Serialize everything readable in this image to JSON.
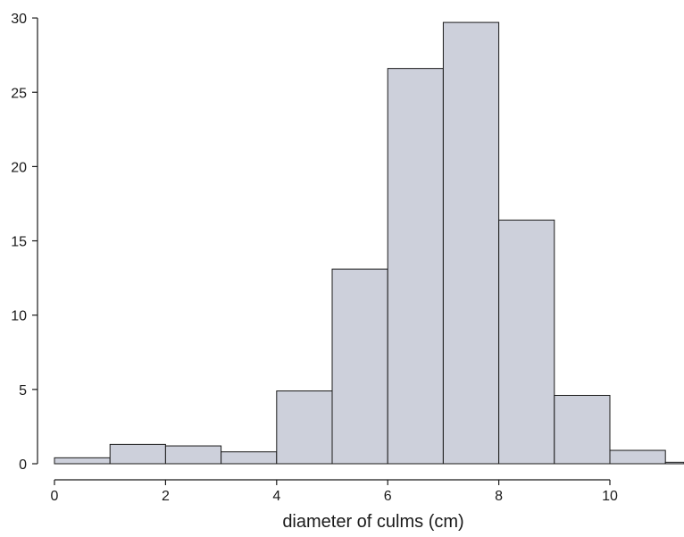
{
  "chart_data": {
    "type": "bar",
    "subtype": "histogram",
    "bins": [
      {
        "start": 0,
        "end": 1,
        "value": 0.4
      },
      {
        "start": 1,
        "end": 2,
        "value": 1.3
      },
      {
        "start": 2,
        "end": 3,
        "value": 1.2
      },
      {
        "start": 3,
        "end": 4,
        "value": 0.8
      },
      {
        "start": 4,
        "end": 5,
        "value": 4.9
      },
      {
        "start": 5,
        "end": 6,
        "value": 13.1
      },
      {
        "start": 6,
        "end": 7,
        "value": 26.6
      },
      {
        "start": 7,
        "end": 8,
        "value": 29.7
      },
      {
        "start": 8,
        "end": 9,
        "value": 16.4
      },
      {
        "start": 9,
        "end": 10,
        "value": 4.6
      },
      {
        "start": 10,
        "end": 11,
        "value": 0.9
      },
      {
        "start": 11,
        "end": 12,
        "value": 0.1
      }
    ],
    "title": "",
    "xlabel": "diameter of culms (cm)",
    "ylabel": "",
    "xlim": [
      0,
      11.2
    ],
    "ylim": [
      0,
      30
    ],
    "x_ticks": [
      "0",
      "2",
      "4",
      "6",
      "8",
      "10"
    ],
    "y_ticks": [
      "0",
      "5",
      "10",
      "15",
      "20",
      "25",
      "30"
    ],
    "grid": false,
    "bar_color": "#cdd0db",
    "edge_color": "#1a1a1a"
  }
}
